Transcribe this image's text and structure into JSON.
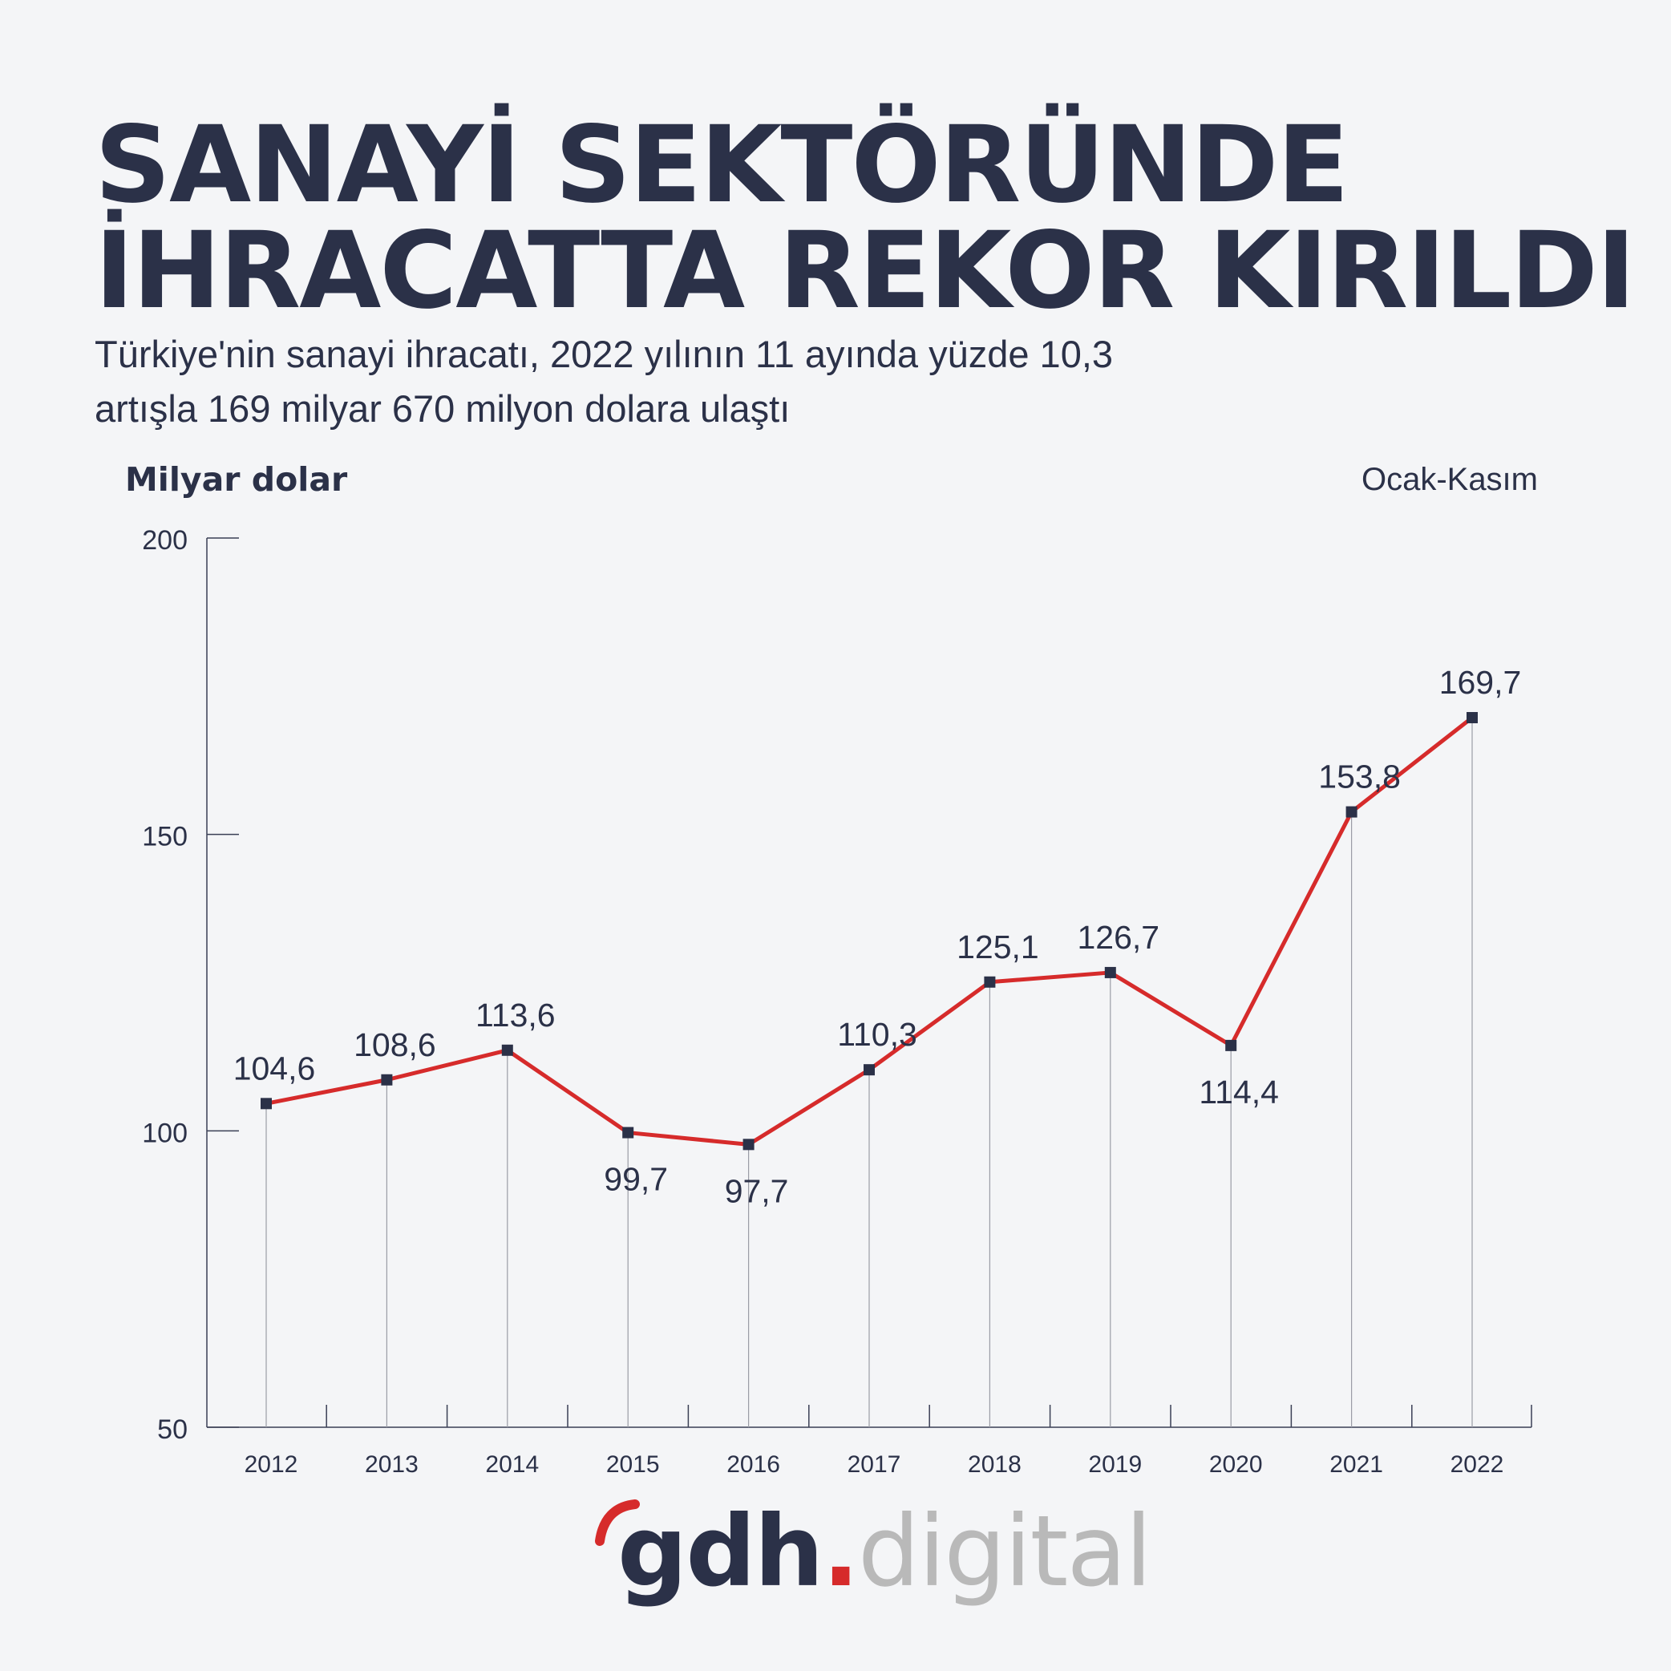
{
  "header": {
    "title_line1": "SANAYİ SEKTÖRÜNDE",
    "title_line2": "İHRACATTA REKOR KIRILDI",
    "subtitle_line1": "Türkiye'nin sanayi ihracatı, 2022 yılının 11 ayında yüzde 10,3",
    "subtitle_line2": "artışla 169 milyar 670 milyon dolara ulaştı"
  },
  "chart_data": {
    "type": "line",
    "title": "SANAYİ SEKTÖRÜNDE İHRACATTA REKOR KIRILDI",
    "ylabel": "Milyar dolar",
    "period_note": "Ocak-Kasım",
    "categories": [
      "2012",
      "2013",
      "2014",
      "2015",
      "2016",
      "2017",
      "2018",
      "2019",
      "2020",
      "2021",
      "2022"
    ],
    "values": [
      104.6,
      108.6,
      113.6,
      99.7,
      97.7,
      110.3,
      125.1,
      126.7,
      114.4,
      153.8,
      169.7
    ],
    "value_labels": [
      "104,6",
      "108,6",
      "113,6",
      "99,7",
      "97,7",
      "110,3",
      "125,1",
      "126,7",
      "114,4",
      "153,8",
      "169,7"
    ],
    "label_positions": [
      "above",
      "above",
      "above",
      "below",
      "below",
      "above",
      "above",
      "above",
      "below",
      "above",
      "above"
    ],
    "ylim": [
      50,
      200
    ],
    "yticks": [
      "50",
      "100",
      "150",
      "200"
    ],
    "ytick_values": [
      50,
      100,
      150,
      200
    ],
    "grid": false,
    "line_color": "#d62b2b",
    "marker_color": "#2b3148",
    "text_color": "#2b3148"
  },
  "branding": {
    "logo_main": "gdh",
    "logo_dot": ".",
    "logo_sub": "digital",
    "accent_color": "#d62b2b"
  }
}
